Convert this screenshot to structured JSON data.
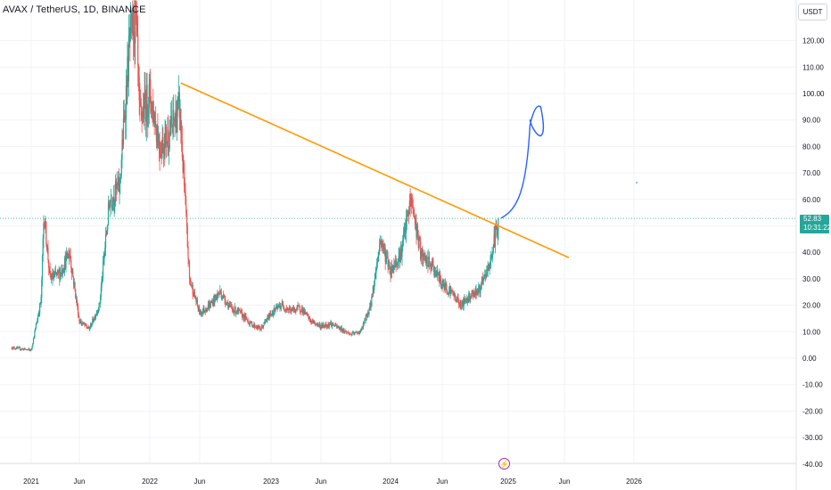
{
  "legend": {
    "title": "AVAX / TetherUS, 1D, BINANCE"
  },
  "currency": "USDT",
  "last_price": {
    "value": "52.83",
    "countdown": "10:31:22"
  },
  "event_icon": "lightning-icon",
  "colors": {
    "up": "#26a69a",
    "down": "#ef5350",
    "trendline": "#ff9800",
    "drawing": "#2962ff",
    "grid": "#f0f3fa",
    "event": "#9c27b0"
  },
  "chart_data": {
    "type": "candlestick",
    "ylim": [
      -40,
      130
    ],
    "y_ticks": [
      "120.00",
      "110.00",
      "100.00",
      "90.00",
      "80.00",
      "70.00",
      "60.00",
      "50.00",
      "40.00",
      "30.00",
      "20.00",
      "10.00",
      "0.00",
      "-10.00",
      "-20.00",
      "-30.00",
      "-40.00"
    ],
    "x_ticks": [
      "2021",
      "Jun",
      "2022",
      "Jun",
      "2023",
      "Jun",
      "2024",
      "Jun",
      "2025",
      "Jun",
      "2026"
    ],
    "grid": true,
    "series": [
      {
        "price_points": [
          [
            "2020-11",
            4
          ],
          [
            "2021-01",
            3
          ],
          [
            "2021-02",
            22
          ],
          [
            "2021-02-10",
            55
          ],
          [
            "2021-03",
            30
          ],
          [
            "2021-04",
            32
          ],
          [
            "2021-05",
            40
          ],
          [
            "2021-06",
            14
          ],
          [
            "2021-07",
            11
          ],
          [
            "2021-08",
            20
          ],
          [
            "2021-09",
            60
          ],
          [
            "2021-10",
            65
          ],
          [
            "2021-11",
            120
          ],
          [
            "2021-11-20",
            128
          ],
          [
            "2021-12",
            90
          ],
          [
            "2022-01",
            100
          ],
          [
            "2022-02",
            80
          ],
          [
            "2022-03",
            85
          ],
          [
            "2022-04",
            95
          ],
          [
            "2022-05",
            30
          ],
          [
            "2022-06",
            17
          ],
          [
            "2022-07",
            20
          ],
          [
            "2022-08",
            25
          ],
          [
            "2022-09",
            19
          ],
          [
            "2022-10",
            17
          ],
          [
            "2022-11",
            13
          ],
          [
            "2022-12",
            11
          ],
          [
            "2023-01",
            17
          ],
          [
            "2023-02",
            20
          ],
          [
            "2023-03",
            18
          ],
          [
            "2023-04",
            19
          ],
          [
            "2023-05",
            14
          ],
          [
            "2023-06",
            12
          ],
          [
            "2023-07",
            13
          ],
          [
            "2023-08",
            11
          ],
          [
            "2023-09",
            9
          ],
          [
            "2023-10",
            10
          ],
          [
            "2023-11",
            20
          ],
          [
            "2023-12",
            45
          ],
          [
            "2024-01",
            33
          ],
          [
            "2024-02",
            40
          ],
          [
            "2024-03",
            60
          ],
          [
            "2024-04",
            38
          ],
          [
            "2024-05",
            35
          ],
          [
            "2024-06",
            28
          ],
          [
            "2024-07",
            25
          ],
          [
            "2024-08",
            20
          ],
          [
            "2024-09",
            24
          ],
          [
            "2024-10",
            26
          ],
          [
            "2024-11",
            35
          ],
          [
            "2024-12",
            52.83
          ]
        ]
      }
    ],
    "trendline": {
      "from": [
        "2022-04-05",
        104
      ],
      "to": [
        "2025-06-15",
        38
      ]
    },
    "annotation": "hand-drawn upward arrow from ~53 toward ~95"
  }
}
